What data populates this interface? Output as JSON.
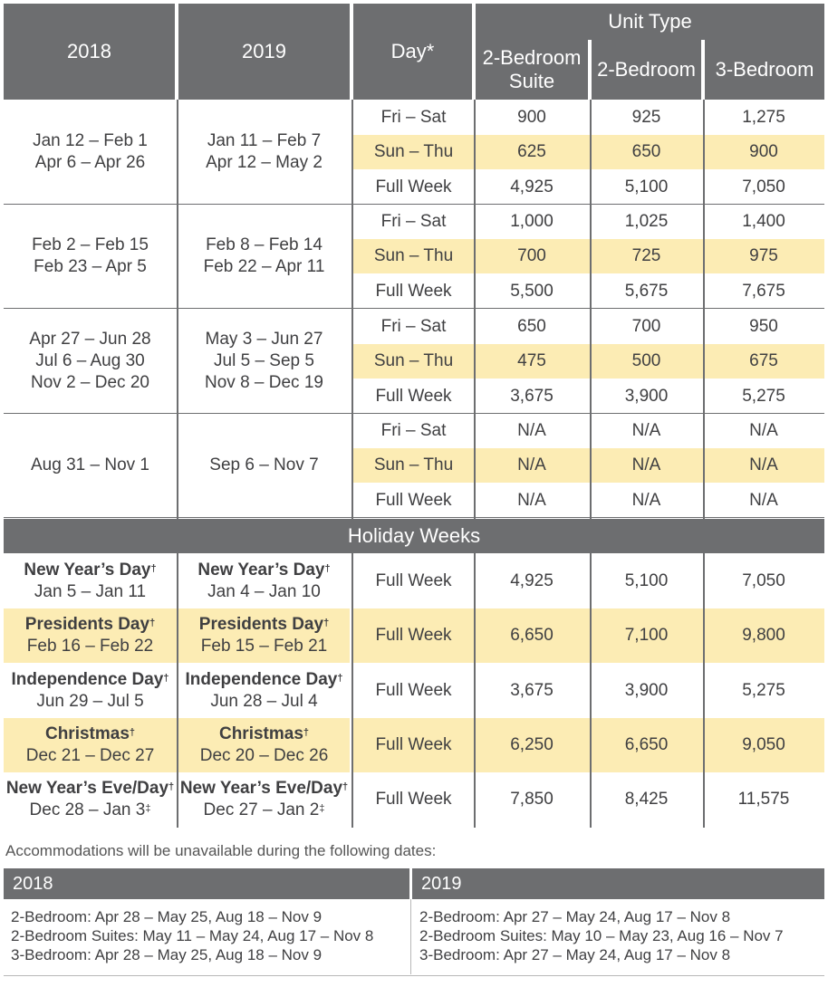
{
  "header": {
    "col_2018": "2018",
    "col_2019": "2019",
    "col_day": "Day*",
    "unit_type": "Unit Type",
    "unit_suite": "2-Bedroom Suite",
    "unit_2br": "2-Bedroom",
    "unit_3br": "3-Bedroom"
  },
  "seasons": [
    {
      "d2018": [
        "Jan 12 – Feb 1",
        "Apr 6 – Apr 26"
      ],
      "d2019": [
        "Jan 11 – Feb 7",
        "Apr 12 – May 2"
      ],
      "rows": [
        {
          "day": "Fri – Sat",
          "suite": "900",
          "br2": "925",
          "br3": "1,275"
        },
        {
          "day": "Sun – Thu",
          "suite": "625",
          "br2": "650",
          "br3": "900"
        },
        {
          "day": "Full Week",
          "suite": "4,925",
          "br2": "5,100",
          "br3": "7,050"
        }
      ]
    },
    {
      "d2018": [
        "Feb 2 – Feb 15",
        "Feb 23 – Apr 5"
      ],
      "d2019": [
        "Feb 8 – Feb 14",
        "Feb 22 – Apr 11"
      ],
      "rows": [
        {
          "day": "Fri – Sat",
          "suite": "1,000",
          "br2": "1,025",
          "br3": "1,400"
        },
        {
          "day": "Sun – Thu",
          "suite": "700",
          "br2": "725",
          "br3": "975"
        },
        {
          "day": "Full Week",
          "suite": "5,500",
          "br2": "5,675",
          "br3": "7,675"
        }
      ]
    },
    {
      "d2018": [
        "Apr 27 – Jun 28",
        "Jul 6 – Aug 30",
        "Nov 2 – Dec 20"
      ],
      "d2019": [
        "May 3 – Jun 27",
        "Jul 5 – Sep 5",
        "Nov 8 – Dec 19"
      ],
      "rows": [
        {
          "day": "Fri – Sat",
          "suite": "650",
          "br2": "700",
          "br3": "950"
        },
        {
          "day": "Sun – Thu",
          "suite": "475",
          "br2": "500",
          "br3": "675"
        },
        {
          "day": "Full Week",
          "suite": "3,675",
          "br2": "3,900",
          "br3": "5,275"
        }
      ]
    },
    {
      "d2018": [
        "Aug 31 – Nov 1"
      ],
      "d2019": [
        "Sep 6 – Nov 7"
      ],
      "rows": [
        {
          "day": "Fri – Sat",
          "suite": "N/A",
          "br2": "N/A",
          "br3": "N/A"
        },
        {
          "day": "Sun – Thu",
          "suite": "N/A",
          "br2": "N/A",
          "br3": "N/A"
        },
        {
          "day": "Full Week",
          "suite": "N/A",
          "br2": "N/A",
          "br3": "N/A"
        }
      ]
    }
  ],
  "holiday_title": "Holiday Weeks",
  "holidays": [
    {
      "name2018": "New Year’s Day",
      "mark2018": "†",
      "dates2018": "Jan 5 – Jan 11",
      "name2019": "New Year’s Day",
      "mark2019": "†",
      "dates2019": "Jan 4 – Jan 10",
      "day": "Full Week",
      "suite": "4,925",
      "br2": "5,100",
      "br3": "7,050",
      "highlight": false
    },
    {
      "name2018": "Presidents Day",
      "mark2018": "†",
      "dates2018": "Feb 16 – Feb 22",
      "name2019": "Presidents Day",
      "mark2019": "†",
      "dates2019": "Feb 15 – Feb 21",
      "day": "Full Week",
      "suite": "6,650",
      "br2": "7,100",
      "br3": "9,800",
      "highlight": true
    },
    {
      "name2018": "Independence Day",
      "mark2018": "†",
      "dates2018": "Jun 29 – Jul 5",
      "name2019": "Independence Day",
      "mark2019": "†",
      "dates2019": "Jun 28 – Jul 4",
      "day": "Full Week",
      "suite": "3,675",
      "br2": "3,900",
      "br3": "5,275",
      "highlight": false
    },
    {
      "name2018": "Christmas",
      "mark2018": "†",
      "dates2018": "Dec 21 – Dec 27",
      "name2019": "Christmas",
      "mark2019": "†",
      "dates2019": "Dec 20 – Dec 26",
      "day": "Full Week",
      "suite": "6,250",
      "br2": "6,650",
      "br3": "9,050",
      "highlight": true
    },
    {
      "name2018": "New Year’s Eve/Day",
      "mark2018": "†",
      "dates2018": "Dec 28 – Jan 3",
      "dmark2018": "‡",
      "name2019": "New Year’s Eve/Day",
      "mark2019": "†",
      "dates2019": "Dec 27 – Jan 2",
      "dmark2019": "‡",
      "day": "Full Week",
      "suite": "7,850",
      "br2": "8,425",
      "br3": "11,575",
      "highlight": false
    }
  ],
  "unavailable": {
    "note": "Accommodations will be unavailable during the following dates:",
    "h2018": "2018",
    "h2019": "2019",
    "l2018": [
      "2-Bedroom: Apr 28 – May 25, Aug 18 – Nov 9",
      "2-Bedroom Suites: May 11 – May 24, Aug 17 – Nov 8",
      "3-Bedroom: Apr 28 – May 25, Aug 18 – Nov 9"
    ],
    "l2019": [
      "2-Bedroom: Apr 27 – May 24, Aug 17 – Nov 8",
      "2-Bedroom Suites: May 10 – May 23, Aug 16 – Nov 7",
      "3-Bedroom: Apr 27 – May 24, Aug 17 – Nov 8"
    ]
  },
  "colors": {
    "header_gray": "#6d6e70",
    "highlight": "#fcecb4",
    "text": "#3f3f41"
  }
}
